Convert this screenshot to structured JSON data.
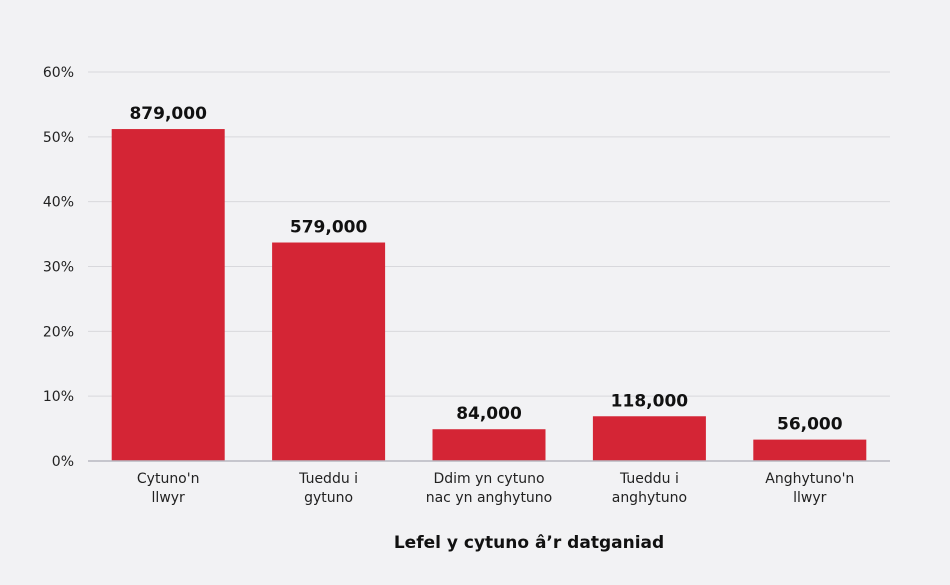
{
  "chart_data": {
    "type": "bar",
    "categories": [
      [
        "Cytuno'n",
        "llwyr"
      ],
      [
        "Tueddu i",
        "gytuno"
      ],
      [
        "Ddim yn cytuno",
        "nac yn anghytuno"
      ],
      [
        "Tueddu i",
        "anghytuno"
      ],
      [
        "Anghytuno'n",
        "llwyr"
      ]
    ],
    "values": [
      51.2,
      33.7,
      4.9,
      6.9,
      3.3
    ],
    "data_labels": [
      "879,000",
      "579,000",
      "84,000",
      "118,000",
      "56,000"
    ],
    "xlabel": "Lefel y cytuno â’r datganiad",
    "ylabel": "",
    "ylim": [
      0,
      60
    ],
    "yticks": [
      0,
      10,
      20,
      30,
      40,
      50,
      60
    ],
    "ytick_labels": [
      "0%",
      "10%",
      "20%",
      "30%",
      "40%",
      "50%",
      "60%"
    ],
    "grid": true,
    "colors": {
      "bar": "#d42535",
      "grid": "#d8d8dc",
      "axis": "#b8b8c0",
      "background": "#f2f2f4"
    }
  }
}
